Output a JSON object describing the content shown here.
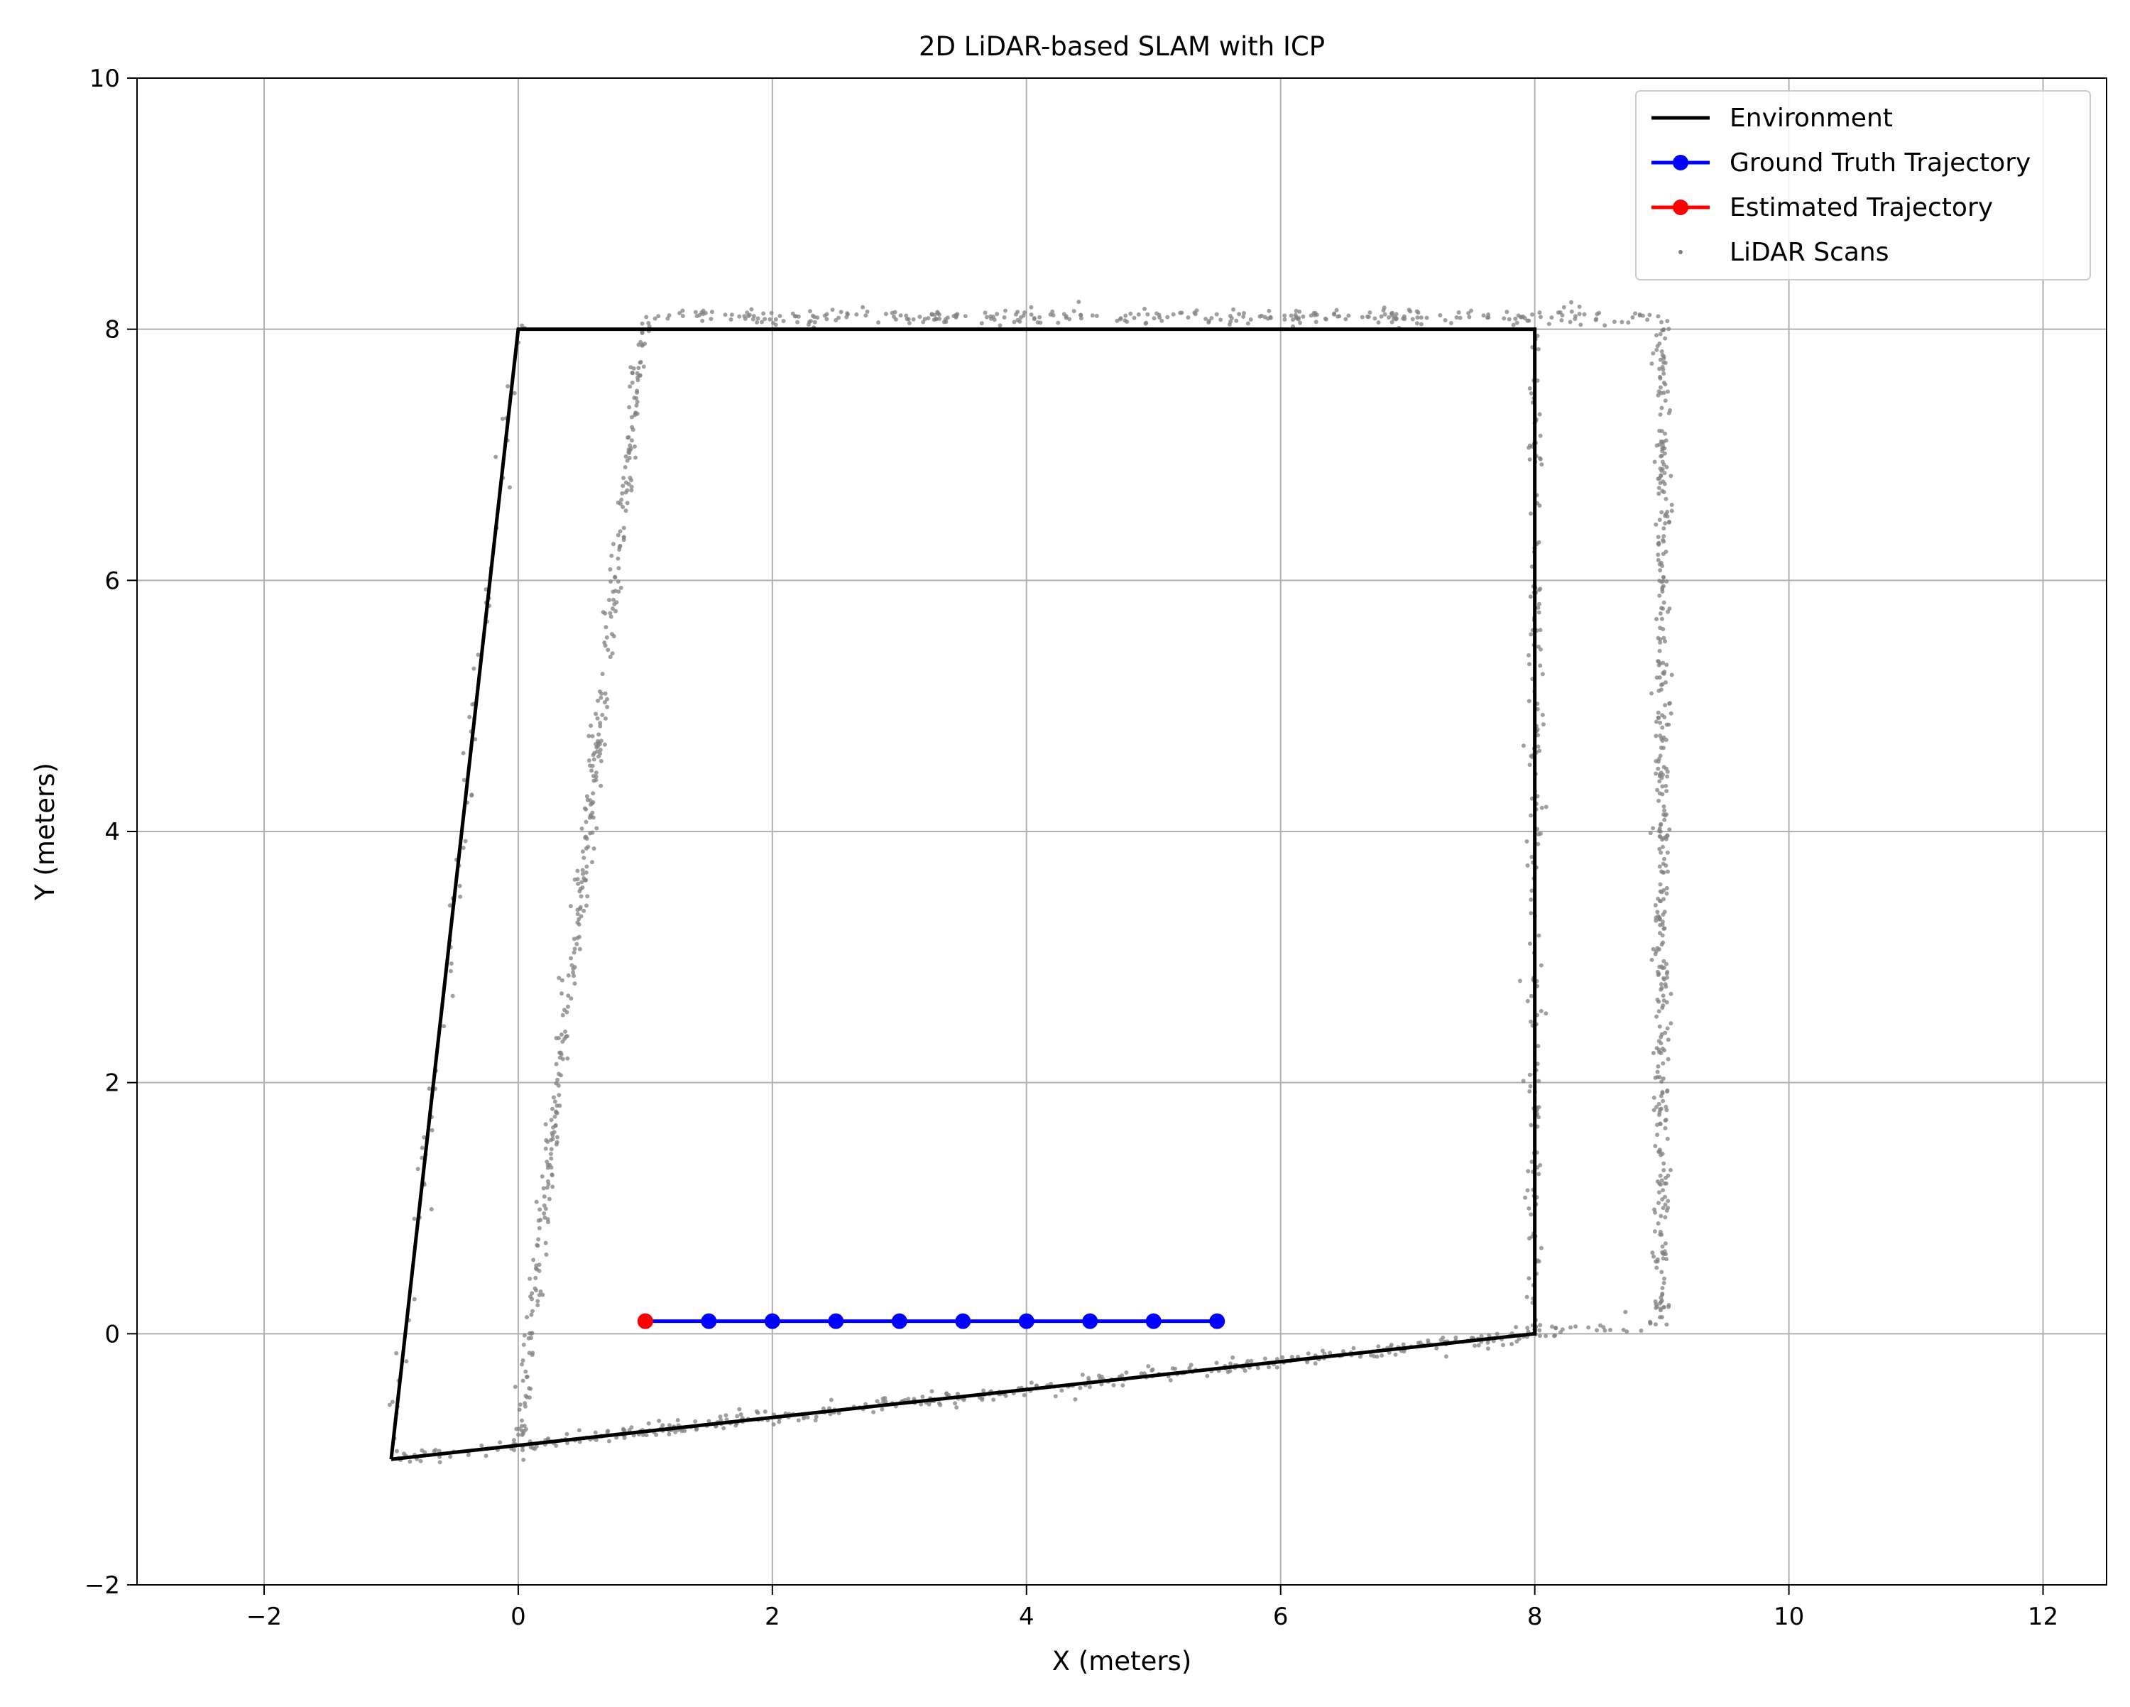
{
  "chart_data": {
    "type": "line",
    "title": "2D LiDAR-based SLAM with ICP",
    "xlabel": "X (meters)",
    "ylabel": "Y (meters)",
    "xlim": [
      -3.0,
      12.5
    ],
    "ylim": [
      -2,
      10
    ],
    "xticks": [
      -2,
      0,
      2,
      4,
      6,
      8,
      10,
      12
    ],
    "yticks": [
      -2,
      0,
      2,
      4,
      6,
      8,
      10
    ],
    "xtick_labels": [
      "−2",
      "0",
      "2",
      "4",
      "6",
      "8",
      "10",
      "12"
    ],
    "ytick_labels": [
      "−2",
      "0",
      "2",
      "4",
      "6",
      "8",
      "10"
    ],
    "grid": true,
    "legend_position": "top-right",
    "series": [
      {
        "name": "Environment",
        "kind": "line",
        "color": "#000000",
        "points": [
          [
            -1,
            -1
          ],
          [
            8,
            0
          ],
          [
            8,
            8
          ],
          [
            0,
            8
          ],
          [
            -1,
            -1
          ]
        ]
      },
      {
        "name": "Ground Truth Trajectory",
        "kind": "line-marker",
        "color": "#0000ff",
        "x": [
          1.0,
          1.5,
          2.0,
          2.5,
          3.0,
          3.5,
          4.0,
          4.5,
          5.0,
          5.5
        ],
        "y": [
          0.1,
          0.1,
          0.1,
          0.1,
          0.1,
          0.1,
          0.1,
          0.1,
          0.1,
          0.1
        ]
      },
      {
        "name": "Estimated Trajectory",
        "kind": "line-marker",
        "color": "#ff0000",
        "x": [
          1.0
        ],
        "y": [
          0.1
        ]
      },
      {
        "name": "LiDAR Scans",
        "kind": "scatter",
        "color": "#808080",
        "noise": 0.03,
        "segments": [
          {
            "from": [
              -1,
              -1
            ],
            "to": [
              8,
              0
            ],
            "count": 420
          },
          {
            "from": [
              8,
              0
            ],
            "to": [
              8,
              8
            ],
            "count": 180
          },
          {
            "from": [
              0,
              8
            ],
            "to": [
              -1,
              -1
            ],
            "count": 70
          },
          {
            "from": [
              0,
              -0.9
            ],
            "to": [
              1.0,
              8.1
            ],
            "count": 380
          },
          {
            "from": [
              1.0,
              8.1
            ],
            "to": [
              9.0,
              8.1
            ],
            "count": 320
          },
          {
            "from": [
              9.0,
              8.1
            ],
            "to": [
              9.0,
              0.1
            ],
            "count": 420
          },
          {
            "from": [
              9.0,
              0.1
            ],
            "to": [
              8.0,
              0.0
            ],
            "count": 25
          }
        ]
      }
    ]
  }
}
